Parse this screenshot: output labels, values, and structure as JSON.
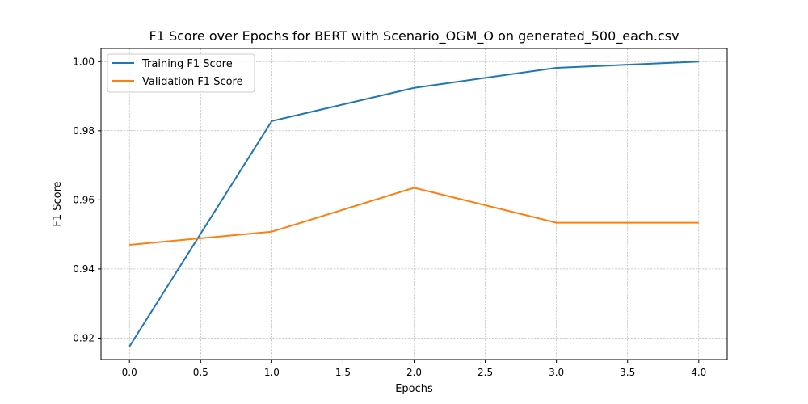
{
  "chart_data": {
    "type": "line",
    "title": "F1 Score over Epochs for BERT with Scenario_OGM_O on generated_500_each.csv",
    "xlabel": "Epochs",
    "ylabel": "F1 Score",
    "xlim": [
      -0.2,
      4.2
    ],
    "ylim": [
      0.9138,
      1.0038
    ],
    "xticks": [
      0.0,
      0.5,
      1.0,
      1.5,
      2.0,
      2.5,
      3.0,
      3.5,
      4.0
    ],
    "xtick_labels": [
      "0.0",
      "0.5",
      "1.0",
      "1.5",
      "2.0",
      "2.5",
      "3.0",
      "3.5",
      "4.0"
    ],
    "yticks": [
      0.92,
      0.94,
      0.96,
      0.98,
      1.0
    ],
    "ytick_labels": [
      "0.92",
      "0.94",
      "0.96",
      "0.98",
      "1.00"
    ],
    "grid": true,
    "legend_position": "top-left",
    "x": [
      0,
      1,
      2,
      3,
      4
    ],
    "series": [
      {
        "name": "Training F1 Score",
        "color": "#1f77b4",
        "values": [
          0.9176,
          0.9828,
          0.9924,
          0.9982,
          1.0
        ]
      },
      {
        "name": "Validation F1 Score",
        "color": "#ff7f0e",
        "values": [
          0.947,
          0.9508,
          0.9635,
          0.9534,
          0.9534
        ]
      }
    ]
  }
}
